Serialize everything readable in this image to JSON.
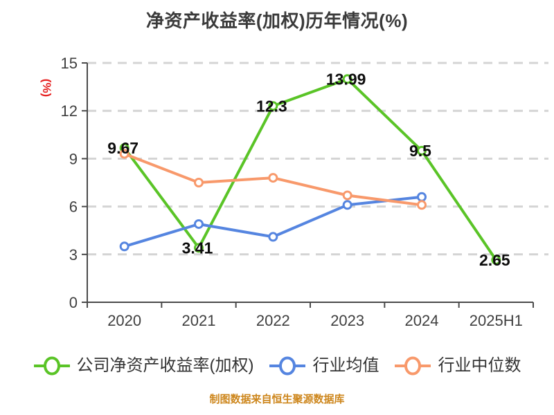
{
  "title": "净资产收益率(加权)历年情况(%)",
  "footer": {
    "text": "制图数据来自恒生聚源数据库",
    "color": "#cd861c"
  },
  "colors": {
    "background": "#ffffff",
    "title": "#3a3a3a",
    "axis": "#4a4a4a",
    "tick_label": "#3f3f3f",
    "grid": "#d4d4d4",
    "data_label": "#0d0d0d",
    "ylabel": "#e62222",
    "legend_text": "#333333",
    "green": "#5ac427",
    "blue": "#5585e0",
    "orange": "#f8996b"
  },
  "chart_data": {
    "type": "line",
    "title": "净资产收益率(加权)历年情况(%)",
    "xlabel": "",
    "ylabel": "(%)",
    "categories": [
      "2020",
      "2021",
      "2022",
      "2023",
      "2024",
      "2025H1"
    ],
    "ylim": [
      0,
      15
    ],
    "yticks": [
      0,
      3,
      6,
      9,
      12,
      15
    ],
    "grid": "dashed-horizontal",
    "legend_position": "bottom",
    "label_position": "center",
    "series": [
      {
        "name": "公司净资产收益率(加权)",
        "color": "#5ac427",
        "values": [
          9.67,
          3.41,
          12.3,
          13.99,
          9.5,
          2.65
        ],
        "show_labels": true
      },
      {
        "name": "行业均值",
        "color": "#5585e0",
        "values": [
          3.5,
          4.9,
          4.1,
          6.1,
          6.6,
          null
        ],
        "show_labels": false
      },
      {
        "name": "行业中位数",
        "color": "#f8996b",
        "values": [
          9.3,
          7.5,
          7.8,
          6.7,
          6.1,
          null
        ],
        "show_labels": false
      }
    ]
  }
}
